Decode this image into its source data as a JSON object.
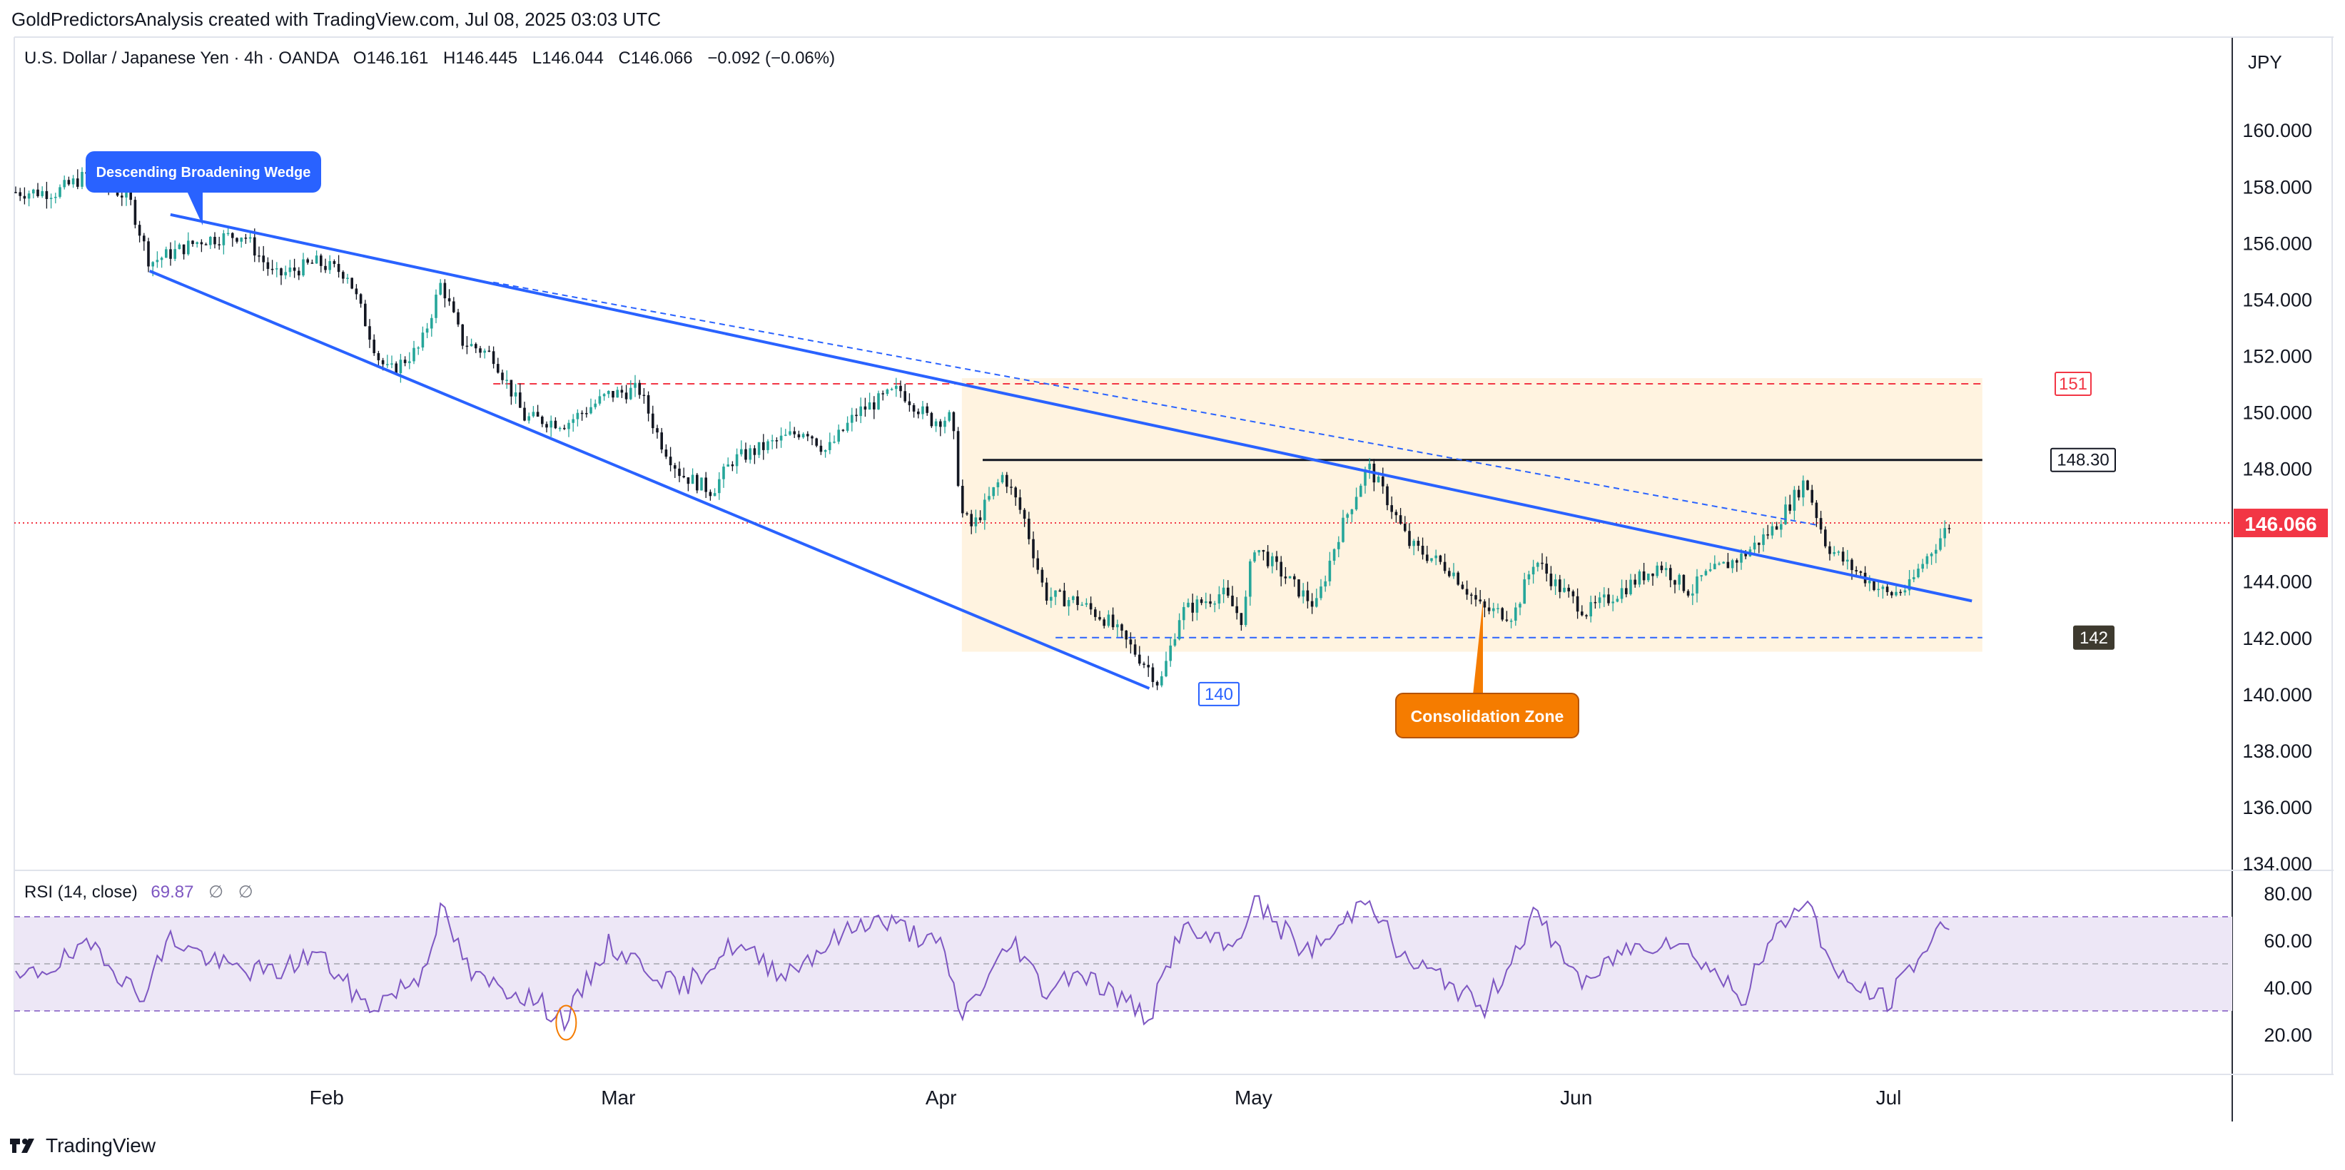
{
  "header": {
    "credit": "GoldPredictorsAnalysis created with TradingView.com, Jul 08, 2025 03:03 UTC",
    "currency": "JPY"
  },
  "symbol": {
    "name": "U.S. Dollar / Japanese Yen · 4h · OANDA",
    "open": "O146.161",
    "high": "H146.445",
    "low": "L146.044",
    "close": "C146.066",
    "change": "−0.092 (−0.06%)"
  },
  "rsi": {
    "label": "RSI (14, close)",
    "value": "69.87",
    "nil1": "∅",
    "nil2": "∅"
  },
  "brand": {
    "name": "TradingView"
  },
  "colors": {
    "up": "#26a69a",
    "down": "#131722",
    "trendline": "#2962ff",
    "resistance": "#f23645",
    "current_price": "#f23645",
    "zone": "#fff3e0",
    "rsi_line": "#7e57c2",
    "rsi_band": "#ede7f6",
    "callout_blue": "#2962ff",
    "callout_orange": "#f57c00"
  },
  "chart_data": [
    {
      "type": "candlestick",
      "symbol": "USDJPY",
      "timeframe": "4h",
      "x_axis_labels": [
        "Feb",
        "Mar",
        "Apr",
        "May",
        "Jun",
        "Jul"
      ],
      "y_axis_ticks": [
        134,
        136,
        138,
        140,
        142,
        144,
        146,
        148,
        150,
        152,
        154,
        156,
        158,
        160
      ],
      "y_axis_tick_labels": [
        "134.000",
        "136.000",
        "138.000",
        "140.000",
        "142.000",
        "144.000",
        "146.000",
        "148.000",
        "150.000",
        "152.000",
        "154.000",
        "156.000",
        "158.000",
        "160.000"
      ],
      "ylim": [
        134,
        161.5
      ],
      "last_price": 146.066,
      "last_price_label": "146.066",
      "close_path": [
        [
          "2025-01-06",
          157.8
        ],
        [
          "2025-01-09",
          158.4
        ],
        [
          "2025-01-13",
          157.6
        ],
        [
          "2025-01-15",
          155.3
        ],
        [
          "2025-01-20",
          156.1
        ],
        [
          "2025-01-24",
          156.3
        ],
        [
          "2025-01-27",
          154.8
        ],
        [
          "2025-01-31",
          155.3
        ],
        [
          "2025-02-03",
          154.9
        ],
        [
          "2025-02-06",
          151.9
        ],
        [
          "2025-02-07",
          151.4
        ],
        [
          "2025-02-10",
          152.3
        ],
        [
          "2025-02-12",
          154.6
        ],
        [
          "2025-02-14",
          152.5
        ],
        [
          "2025-02-17",
          152.0
        ],
        [
          "2025-02-20",
          149.8
        ],
        [
          "2025-02-24",
          149.6
        ],
        [
          "2025-02-28",
          150.6
        ],
        [
          "2025-03-03",
          150.8
        ],
        [
          "2025-03-05",
          149.0
        ],
        [
          "2025-03-07",
          147.8
        ],
        [
          "2025-03-10",
          147.2
        ],
        [
          "2025-03-12",
          148.3
        ],
        [
          "2025-03-14",
          148.6
        ],
        [
          "2025-03-19",
          149.4
        ],
        [
          "2025-03-21",
          148.6
        ],
        [
          "2025-03-24",
          150.0
        ],
        [
          "2025-03-26",
          150.4
        ],
        [
          "2025-03-28",
          150.8
        ],
        [
          "2025-03-31",
          149.7
        ],
        [
          "2025-04-02",
          149.8
        ],
        [
          "2025-04-03",
          146.4
        ],
        [
          "2025-04-04",
          145.9
        ],
        [
          "2025-04-07",
          147.8
        ],
        [
          "2025-04-09",
          146.2
        ],
        [
          "2025-04-11",
          143.5
        ],
        [
          "2025-04-14",
          143.3
        ],
        [
          "2025-04-17",
          142.6
        ],
        [
          "2025-04-21",
          140.9
        ],
        [
          "2025-04-22",
          140.3
        ],
        [
          "2025-04-24",
          142.9
        ],
        [
          "2025-04-28",
          143.6
        ],
        [
          "2025-04-30",
          142.6
        ],
        [
          "2025-05-01",
          145.3
        ],
        [
          "2025-05-05",
          143.8
        ],
        [
          "2025-05-07",
          143.1
        ],
        [
          "2025-05-09",
          145.5
        ],
        [
          "2025-05-12",
          148.1
        ],
        [
          "2025-05-14",
          146.8
        ],
        [
          "2025-05-16",
          145.3
        ],
        [
          "2025-05-20",
          144.4
        ],
        [
          "2025-05-23",
          143.0
        ],
        [
          "2025-05-26",
          142.8
        ],
        [
          "2025-05-28",
          144.8
        ],
        [
          "2025-05-30",
          143.9
        ],
        [
          "2025-06-02",
          142.9
        ],
        [
          "2025-06-05",
          143.6
        ],
        [
          "2025-06-09",
          144.6
        ],
        [
          "2025-06-12",
          143.6
        ],
        [
          "2025-06-13",
          144.1
        ],
        [
          "2025-06-17",
          144.9
        ],
        [
          "2025-06-20",
          145.9
        ],
        [
          "2025-06-23",
          147.6
        ],
        [
          "2025-06-25",
          145.3
        ],
        [
          "2025-06-27",
          144.6
        ],
        [
          "2025-07-01",
          143.5
        ],
        [
          "2025-07-03",
          143.8
        ],
        [
          "2025-07-04",
          144.5
        ],
        [
          "2025-07-07",
          146.1
        ]
      ],
      "annotations": [
        {
          "kind": "callout",
          "text": "Descending Broadening Wedge"
        },
        {
          "kind": "callout",
          "text": "Consolidation Zone"
        },
        {
          "kind": "level",
          "price": 151,
          "label": "151",
          "style": "dashed-red"
        },
        {
          "kind": "level",
          "price": 148.3,
          "label": "148.30",
          "style": "solid-black"
        },
        {
          "kind": "level",
          "price": 142,
          "label": "142",
          "style": "dashed-blue"
        },
        {
          "kind": "low",
          "price": 140,
          "label": "140"
        },
        {
          "kind": "zone",
          "from_price": 141.5,
          "to_price": 151.2,
          "from_date": "2025-04-03",
          "to_date": "2025-07-10"
        },
        {
          "kind": "trendline",
          "name": "wedge upper",
          "from": [
            "2025-01-17",
            157.0
          ],
          "to": [
            "2025-07-09",
            143.3
          ]
        },
        {
          "kind": "trendline",
          "name": "wedge lower",
          "from": [
            "2025-01-15",
            155.0
          ],
          "to": [
            "2025-04-21",
            140.2
          ]
        }
      ]
    },
    {
      "type": "line",
      "name": "RSI (14, close)",
      "value": 69.87,
      "y_axis_ticks": [
        20,
        40,
        60,
        80
      ],
      "y_axis_tick_labels": [
        "20.00",
        "40.00",
        "60.00",
        "80.00"
      ],
      "ylim": [
        16,
        84
      ],
      "bands": {
        "upper": 70,
        "middle": 50,
        "lower": 30
      },
      "path": [
        [
          "2025-01-06",
          50
        ],
        [
          "2025-01-10",
          58
        ],
        [
          "2025-01-14",
          35
        ],
        [
          "2025-01-17",
          61
        ],
        [
          "2025-01-22",
          49
        ],
        [
          "2025-01-27",
          46
        ],
        [
          "2025-01-31",
          55
        ],
        [
          "2025-02-05",
          31
        ],
        [
          "2025-02-10",
          45
        ],
        [
          "2025-02-12",
          73
        ],
        [
          "2025-02-15",
          44
        ],
        [
          "2025-02-20",
          37
        ],
        [
          "2025-02-24",
          26
        ],
        [
          "2025-02-28",
          58
        ],
        [
          "2025-03-04",
          48
        ],
        [
          "2025-03-07",
          39
        ],
        [
          "2025-03-12",
          58
        ],
        [
          "2025-03-17",
          46
        ],
        [
          "2025-03-21",
          58
        ],
        [
          "2025-03-25",
          69
        ],
        [
          "2025-03-28",
          66
        ],
        [
          "2025-04-01",
          57
        ],
        [
          "2025-04-03",
          28
        ],
        [
          "2025-04-08",
          60
        ],
        [
          "2025-04-11",
          38
        ],
        [
          "2025-04-14",
          48
        ],
        [
          "2025-04-21",
          27
        ],
        [
          "2025-04-24",
          65
        ],
        [
          "2025-04-29",
          56
        ],
        [
          "2025-05-01",
          77
        ],
        [
          "2025-05-06",
          55
        ],
        [
          "2025-05-09",
          63
        ],
        [
          "2025-05-12",
          81
        ],
        [
          "2025-05-15",
          53
        ],
        [
          "2025-05-20",
          42
        ],
        [
          "2025-05-23",
          30
        ],
        [
          "2025-05-28",
          71
        ],
        [
          "2025-06-02",
          40
        ],
        [
          "2025-06-05",
          55
        ],
        [
          "2025-06-10",
          61
        ],
        [
          "2025-06-13",
          52
        ],
        [
          "2025-06-17",
          35
        ],
        [
          "2025-06-20",
          62
        ],
        [
          "2025-06-23",
          79
        ],
        [
          "2025-06-26",
          44
        ],
        [
          "2025-07-01",
          34
        ],
        [
          "2025-07-03",
          48
        ],
        [
          "2025-07-07",
          70
        ]
      ]
    }
  ]
}
